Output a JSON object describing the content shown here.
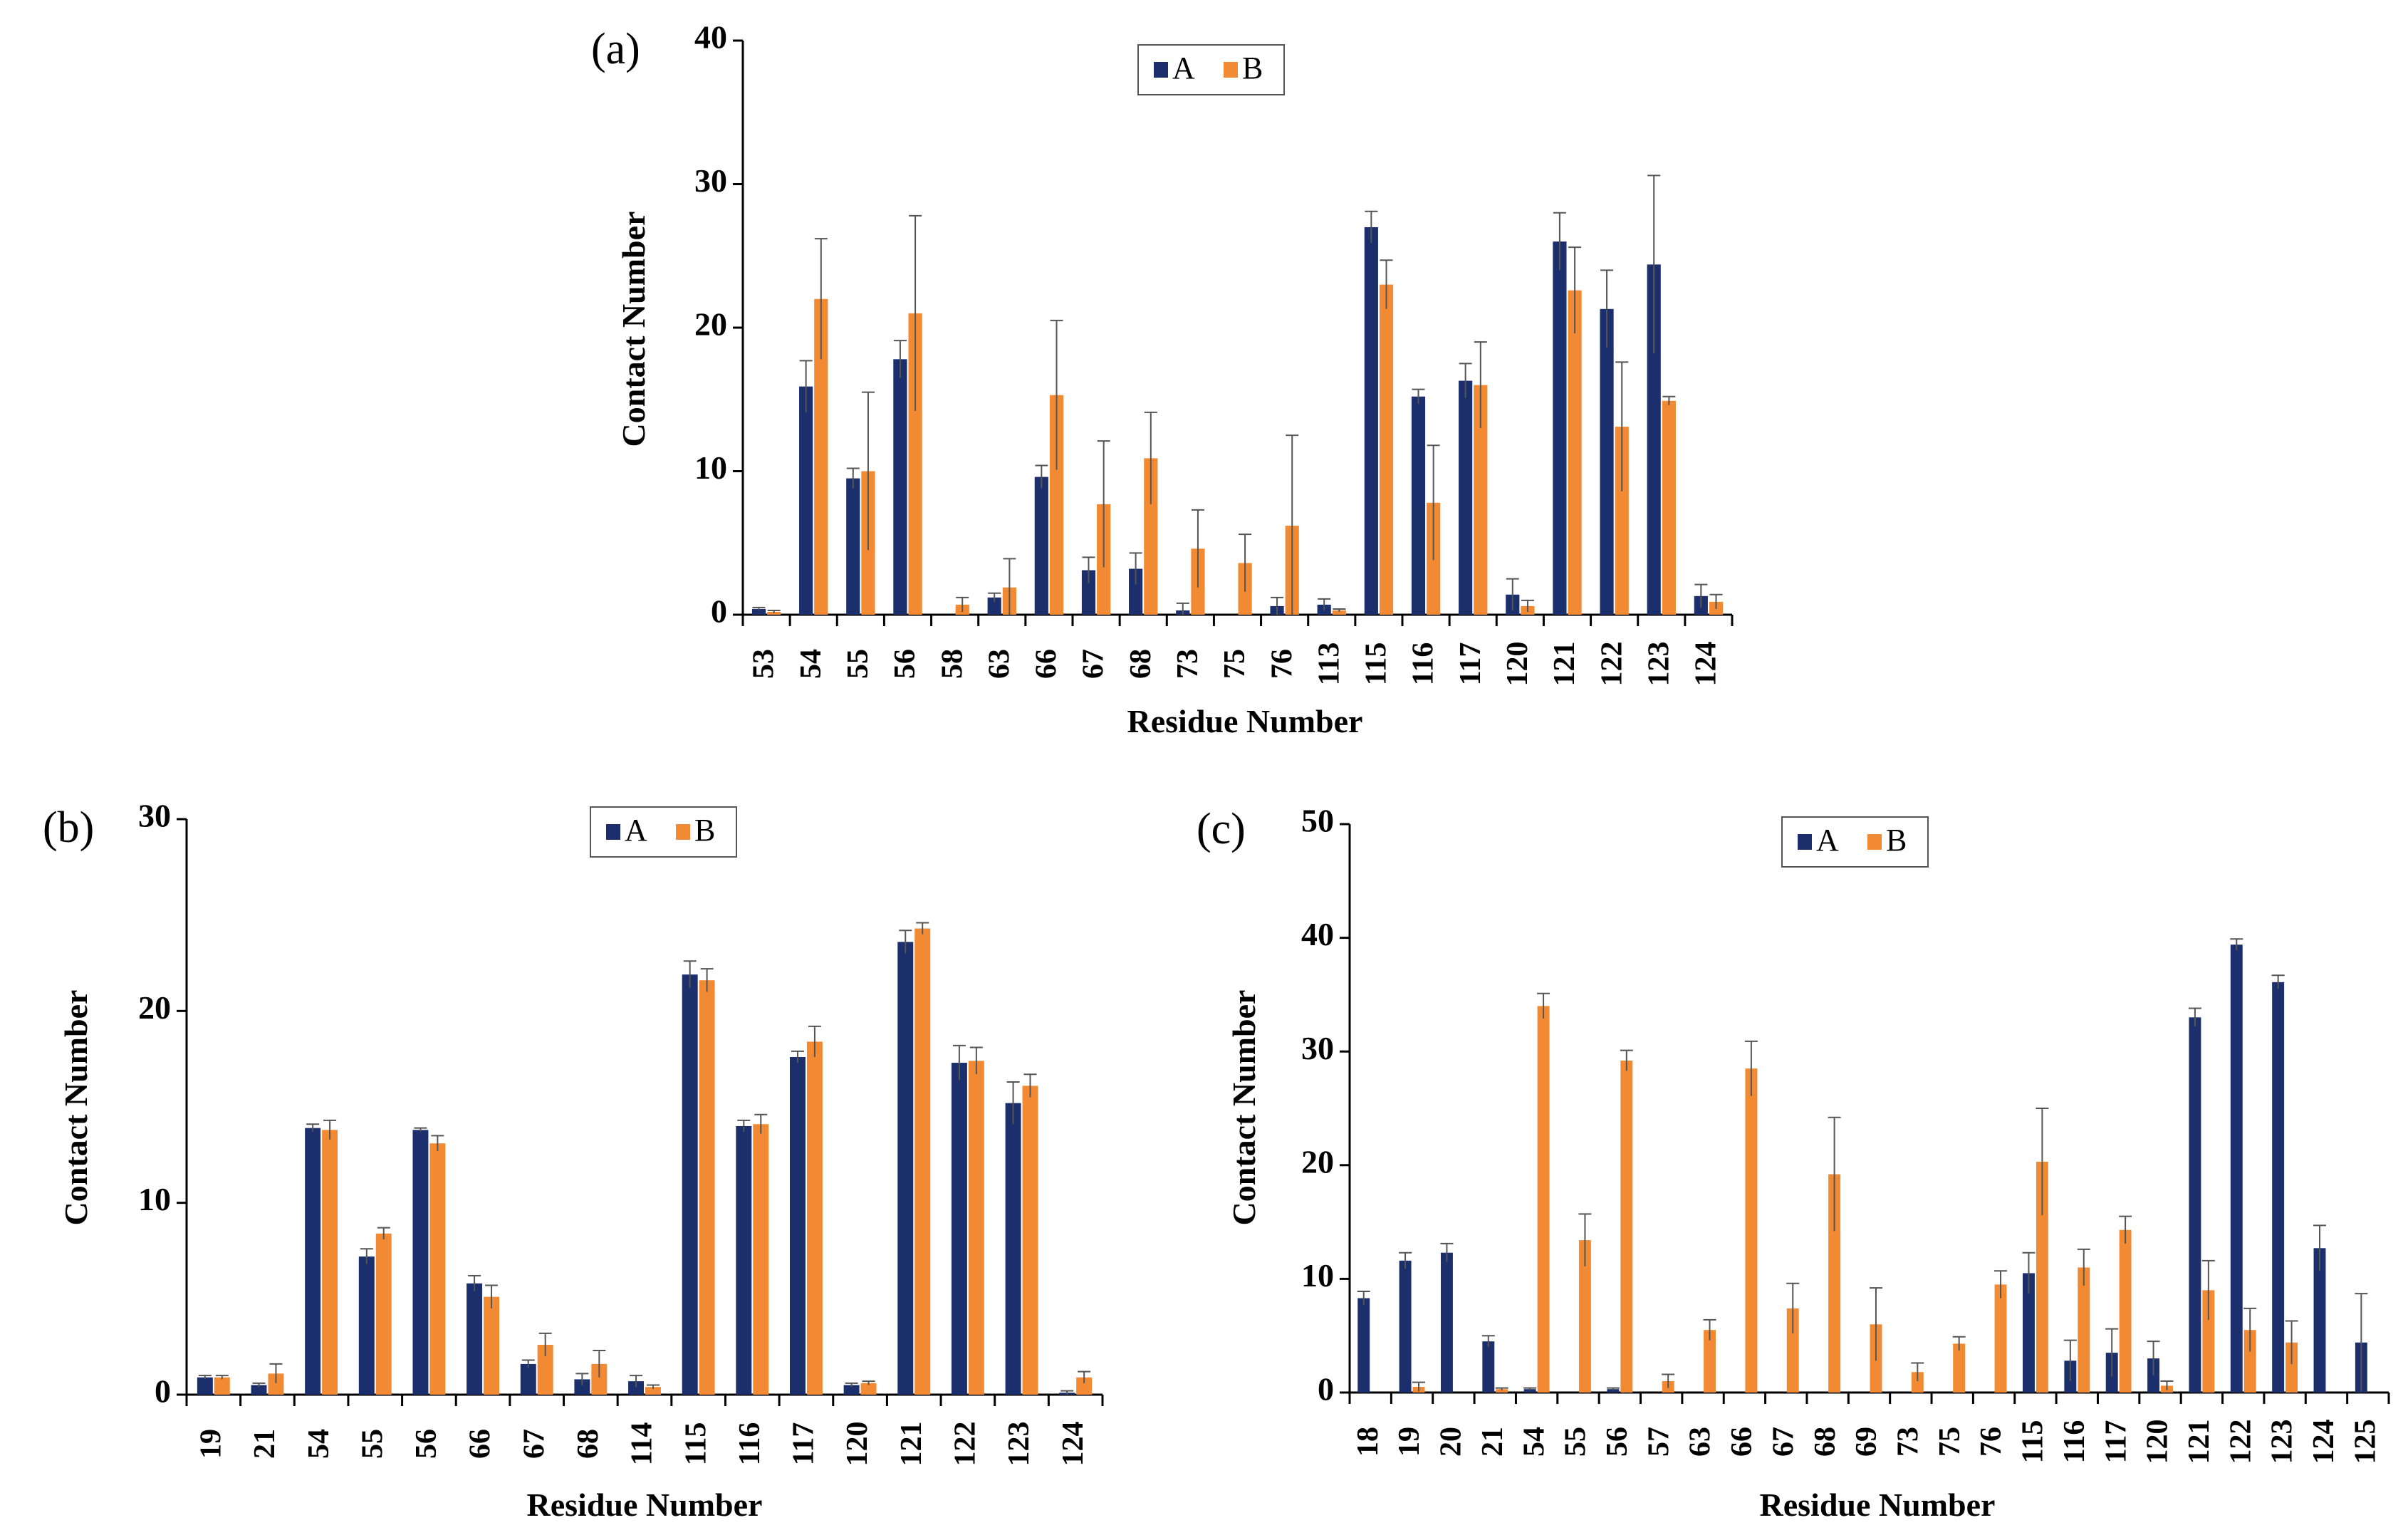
{
  "chart_data": [
    {
      "type": "bar",
      "panel_label": "(a)",
      "xlabel": "Residue Number",
      "ylabel": "Contact Number",
      "ylim": [
        0,
        40
      ],
      "yticks": [
        0,
        10,
        20,
        30,
        40
      ],
      "legend_position": "top-center",
      "categories": [
        "53",
        "54",
        "55",
        "56",
        "58",
        "63",
        "66",
        "67",
        "68",
        "73",
        "75",
        "76",
        "113",
        "115",
        "116",
        "117",
        "120",
        "121",
        "122",
        "123",
        "124"
      ],
      "series": [
        {
          "name": "A",
          "color": "#1a2f6b",
          "values": [
            0.4,
            15.9,
            9.5,
            17.8,
            0,
            1.2,
            9.6,
            3.1,
            3.2,
            0.3,
            0,
            0.6,
            0.7,
            27.0,
            15.2,
            16.3,
            1.4,
            26.0,
            21.3,
            24.4,
            1.3
          ],
          "errors": [
            0.1,
            1.8,
            0.7,
            1.3,
            0,
            0.3,
            0.8,
            0.9,
            1.1,
            0.5,
            0,
            0.6,
            0.4,
            1.1,
            0.5,
            1.2,
            1.1,
            2.0,
            2.7,
            6.2,
            0.8
          ]
        },
        {
          "name": "B",
          "color": "#f28a33",
          "values": [
            0.2,
            22.0,
            10.0,
            21.0,
            0.7,
            1.9,
            15.3,
            7.7,
            10.9,
            4.6,
            3.6,
            6.2,
            0.3,
            23.0,
            7.8,
            16.0,
            0.6,
            22.6,
            13.1,
            14.9,
            0.9
          ],
          "errors": [
            0.1,
            4.2,
            5.5,
            6.8,
            0.5,
            2.0,
            5.2,
            4.4,
            3.2,
            2.7,
            2.0,
            6.3,
            0.1,
            1.7,
            4.0,
            3.0,
            0.4,
            3.0,
            4.5,
            0.3,
            0.5
          ]
        }
      ]
    },
    {
      "type": "bar",
      "panel_label": "(b)",
      "xlabel": "Residue Number",
      "ylabel": "Contact Number",
      "ylim": [
        0,
        30
      ],
      "yticks": [
        0,
        10,
        20,
        30
      ],
      "legend_position": "top-center",
      "categories": [
        "19",
        "21",
        "54",
        "55",
        "56",
        "66",
        "67",
        "68",
        "114",
        "115",
        "116",
        "117",
        "120",
        "121",
        "122",
        "123",
        "124"
      ],
      "series": [
        {
          "name": "A",
          "color": "#1a2f6b",
          "values": [
            0.9,
            0.5,
            13.9,
            7.2,
            13.8,
            5.8,
            1.6,
            0.8,
            0.7,
            21.9,
            14.0,
            17.6,
            0.5,
            23.6,
            17.3,
            15.2,
            0.1
          ],
          "errors": [
            0.1,
            0.1,
            0.2,
            0.4,
            0.1,
            0.4,
            0.2,
            0.3,
            0.3,
            0.7,
            0.3,
            0.3,
            0.1,
            0.6,
            0.9,
            1.1,
            0.1
          ]
        },
        {
          "name": "B",
          "color": "#f28a33",
          "values": [
            0.9,
            1.1,
            13.8,
            8.4,
            13.1,
            5.1,
            2.6,
            1.6,
            0.4,
            21.6,
            14.1,
            18.4,
            0.6,
            24.3,
            17.4,
            16.1,
            0.9
          ],
          "errors": [
            0.1,
            0.5,
            0.5,
            0.3,
            0.4,
            0.6,
            0.6,
            0.7,
            0.1,
            0.6,
            0.5,
            0.8,
            0.1,
            0.3,
            0.7,
            0.6,
            0.3
          ]
        }
      ]
    },
    {
      "type": "bar",
      "panel_label": "(c)",
      "xlabel": "Residue Number",
      "ylabel": "Contact Number",
      "ylim": [
        0,
        50
      ],
      "yticks": [
        0,
        10,
        20,
        30,
        40,
        50
      ],
      "legend_position": "top-center",
      "categories": [
        "18",
        "19",
        "20",
        "21",
        "54",
        "55",
        "56",
        "57",
        "63",
        "66",
        "67",
        "68",
        "69",
        "73",
        "75",
        "76",
        "115",
        "116",
        "117",
        "120",
        "121",
        "122",
        "123",
        "124",
        "125"
      ],
      "series": [
        {
          "name": "A",
          "color": "#1a2f6b",
          "values": [
            8.3,
            11.6,
            12.3,
            4.5,
            0.3,
            0,
            0.3,
            0,
            0,
            0,
            0,
            0,
            0,
            0,
            0,
            0,
            10.5,
            2.8,
            3.5,
            3.0,
            33.0,
            39.4,
            36.1,
            12.7,
            4.4
          ],
          "errors": [
            0.6,
            0.7,
            0.8,
            0.5,
            0.1,
            0,
            0.1,
            0,
            0,
            0,
            0,
            0,
            0,
            0,
            0,
            0,
            1.8,
            1.8,
            2.1,
            1.5,
            0.8,
            0.5,
            0.6,
            2.0,
            4.3
          ]
        },
        {
          "name": "B",
          "color": "#f28a33",
          "values": [
            0,
            0.5,
            0,
            0.3,
            34.0,
            13.4,
            29.2,
            1.0,
            5.5,
            28.5,
            7.4,
            19.2,
            6.0,
            1.8,
            4.3,
            9.5,
            20.3,
            11.0,
            14.3,
            0.6,
            9.0,
            5.5,
            4.4,
            0,
            0
          ],
          "errors": [
            0,
            0.4,
            0,
            0.1,
            1.1,
            2.3,
            0.9,
            0.6,
            0.9,
            2.4,
            2.2,
            5.0,
            3.2,
            0.8,
            0.6,
            1.2,
            4.7,
            1.6,
            1.2,
            0.4,
            2.6,
            1.9,
            1.9,
            0,
            0
          ]
        }
      ]
    }
  ]
}
